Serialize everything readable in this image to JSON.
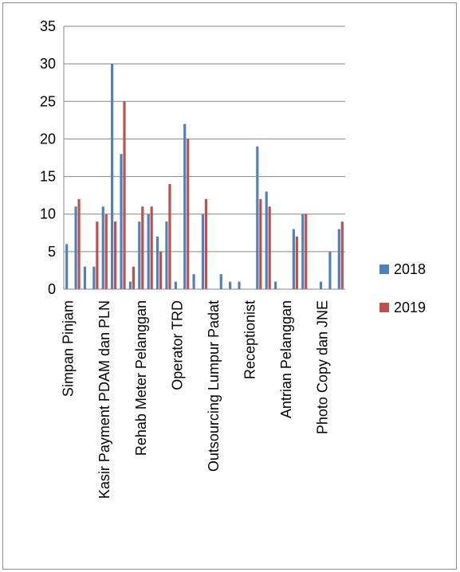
{
  "chart_data": {
    "type": "bar",
    "ylim": [
      0,
      35
    ],
    "yticks": [
      "0",
      "5",
      "10",
      "15",
      "20",
      "25",
      "30",
      "35"
    ],
    "grid": true,
    "legend_position": "right",
    "category_labels": [
      "Simpan Pinjam",
      "Kasir Payment PDAM dan PLN",
      "Rehab Meter Pelanggan",
      "Operator TRD",
      "Outsourcing Lumpur Padat",
      "Receptionist",
      "Antrian Pelanggan",
      "Photo Copy dan JNE"
    ],
    "series": [
      {
        "name": "2018",
        "color": "#4f81bd",
        "values": [
          6,
          11,
          3,
          3,
          11,
          30,
          18,
          1,
          9,
          10,
          7,
          9,
          1,
          22,
          2,
          10,
          0,
          2,
          1,
          1,
          0,
          19,
          13,
          1,
          0,
          8,
          10,
          0,
          1,
          5,
          8
        ]
      },
      {
        "name": "2019",
        "color": "#c0504d",
        "values": [
          0,
          12,
          0,
          9,
          10,
          9,
          25,
          3,
          11,
          11,
          5,
          14,
          0,
          20,
          0,
          12,
          0,
          0,
          0,
          0,
          0,
          12,
          11,
          0,
          0,
          7,
          10,
          0,
          0,
          0,
          9
        ]
      }
    ]
  }
}
